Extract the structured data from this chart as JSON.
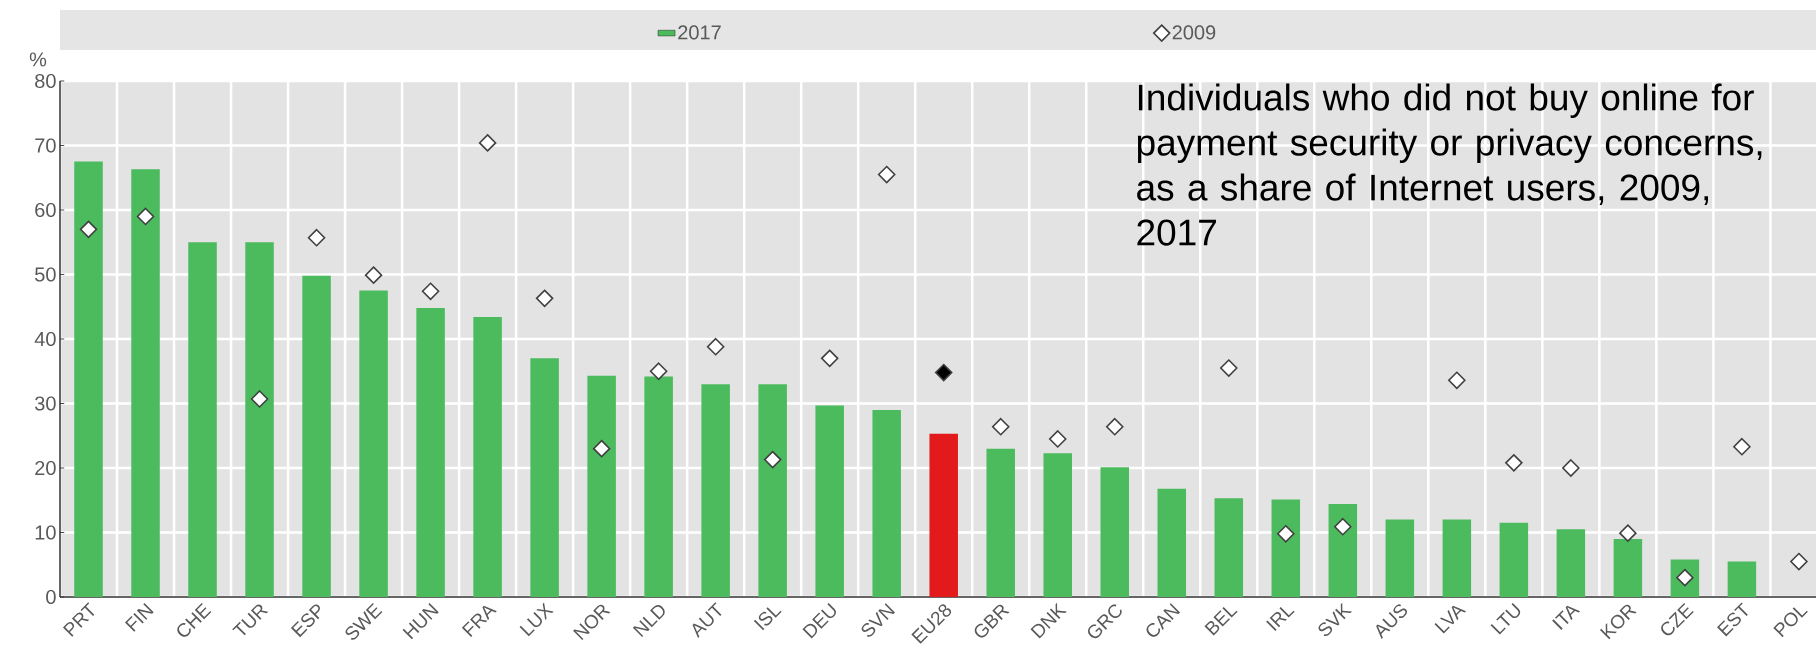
{
  "chart_data": {
    "type": "bar",
    "title": "Individuals who did not buy online for payment security or privacy concerns, as a share of Internet users, 2009, 2017",
    "ylabel": "%",
    "categories": [
      "PRT",
      "FIN",
      "CHE",
      "TUR",
      "ESP",
      "SWE",
      "HUN",
      "FRA",
      "LUX",
      "NOR",
      "NLD",
      "AUT",
      "ISL",
      "DEU",
      "SVN",
      "EU28",
      "GBR",
      "DNK",
      "GRC",
      "CAN",
      "BEL",
      "IRL",
      "SVK",
      "AUS",
      "LVA",
      "LTU",
      "ITA",
      "KOR",
      "CZE",
      "EST",
      "POL"
    ],
    "series": [
      {
        "name": "2017",
        "color": "#4cbb5e",
        "values": [
          67.5,
          66.3,
          55,
          55,
          49.8,
          47.5,
          44.8,
          43.4,
          37,
          34.3,
          34.2,
          33,
          33,
          29.7,
          29,
          25.3,
          23,
          22.3,
          20.1,
          16.8,
          15.3,
          15.1,
          14.4,
          12,
          12,
          11.5,
          10.5,
          9,
          5.8,
          5.5,
          null
        ],
        "colors": [
          "#4cbb5e",
          "#4cbb5e",
          "#4cbb5e",
          "#4cbb5e",
          "#4cbb5e",
          "#4cbb5e",
          "#4cbb5e",
          "#4cbb5e",
          "#4cbb5e",
          "#4cbb5e",
          "#4cbb5e",
          "#4cbb5e",
          "#4cbb5e",
          "#4cbb5e",
          "#4cbb5e",
          "#e31a1c",
          "#4cbb5e",
          "#4cbb5e",
          "#4cbb5e",
          "#4cbb5e",
          "#4cbb5e",
          "#4cbb5e",
          "#4cbb5e",
          "#4cbb5e",
          "#4cbb5e",
          "#4cbb5e",
          "#4cbb5e",
          "#4cbb5e",
          "#4cbb5e",
          "#4cbb5e",
          "#4cbb5e"
        ]
      },
      {
        "name": "2009",
        "type": "scatter",
        "marker": "diamond",
        "color": "#ffffff",
        "values": [
          57,
          59,
          null,
          30.7,
          55.7,
          49.9,
          47.4,
          70.4,
          46.3,
          23,
          35,
          38.8,
          21.3,
          37,
          65.5,
          34.8,
          26.4,
          24.5,
          26.4,
          null,
          35.5,
          9.8,
          10.9,
          null,
          33.6,
          20.8,
          20,
          9.9,
          3,
          23.3,
          5.5
        ],
        "colors": [
          "#ffffff",
          "#ffffff",
          "#ffffff",
          "#ffffff",
          "#ffffff",
          "#ffffff",
          "#ffffff",
          "#ffffff",
          "#ffffff",
          "#ffffff",
          "#ffffff",
          "#ffffff",
          "#ffffff",
          "#ffffff",
          "#ffffff",
          "#000000",
          "#ffffff",
          "#ffffff",
          "#ffffff",
          "#ffffff",
          "#ffffff",
          "#ffffff",
          "#ffffff",
          "#ffffff",
          "#ffffff",
          "#ffffff",
          "#ffffff",
          "#ffffff",
          "#ffffff",
          "#ffffff",
          "#ffffff"
        ]
      }
    ],
    "ylim": [
      0,
      80
    ],
    "yticks": [
      0,
      10,
      20,
      30,
      40,
      50,
      60,
      70,
      80
    ],
    "grid": true,
    "legend": "top"
  }
}
